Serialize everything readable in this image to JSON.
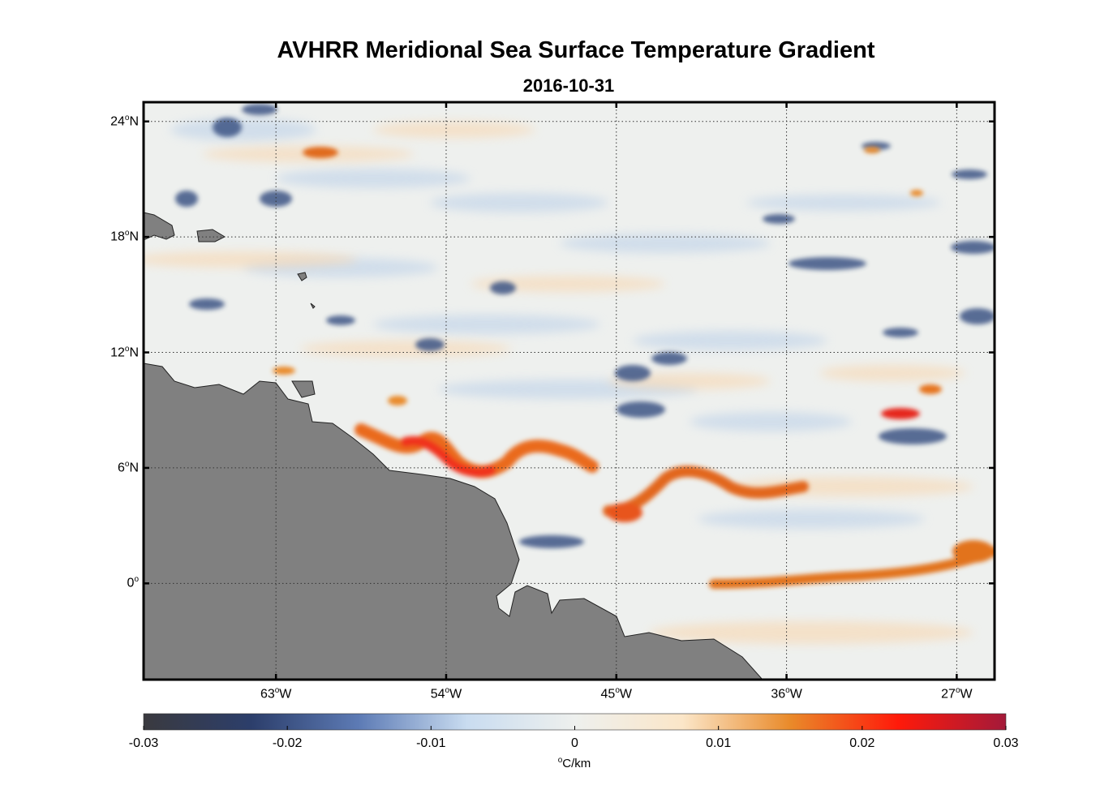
{
  "title": "AVHRR Meridional Sea Surface Temperature Gradient",
  "date": "2016-10-31",
  "map": {
    "lat_range": [
      -5,
      25
    ],
    "lon_range": [
      -70,
      -25
    ],
    "lat_ticks": [
      {
        "value": 24,
        "label_num": "24",
        "label_dir": "N"
      },
      {
        "value": 18,
        "label_num": "18",
        "label_dir": "N"
      },
      {
        "value": 12,
        "label_num": "12",
        "label_dir": "N"
      },
      {
        "value": 6,
        "label_num": "6",
        "label_dir": "N"
      },
      {
        "value": 0,
        "label_num": "0",
        "label_dir": ""
      }
    ],
    "lon_ticks": [
      {
        "value": -63,
        "label_num": "63",
        "label_dir": "W"
      },
      {
        "value": -54,
        "label_num": "54",
        "label_dir": "W"
      },
      {
        "value": -45,
        "label_num": "45",
        "label_dir": "W"
      },
      {
        "value": -36,
        "label_num": "36",
        "label_dir": "W"
      },
      {
        "value": -27,
        "label_num": "27",
        "label_dir": "W"
      }
    ],
    "degree_symbol": "o",
    "land_color": "#808080",
    "frame_color": "#000000"
  },
  "colorbar": {
    "min": -0.03,
    "max": 0.03,
    "ticks": [
      {
        "value": -0.03,
        "label": "-0.03"
      },
      {
        "value": -0.02,
        "label": "-0.02"
      },
      {
        "value": -0.01,
        "label": "-0.01"
      },
      {
        "value": 0,
        "label": "0"
      },
      {
        "value": 0.01,
        "label": "0.01"
      },
      {
        "value": 0.02,
        "label": "0.02"
      },
      {
        "value": 0.03,
        "label": "0.03"
      }
    ],
    "unit_symbol": "o",
    "unit_text": "C/km",
    "colors": [
      "#3a3a3f",
      "#2c3e6b",
      "#5d7bb5",
      "#c9dcf0",
      "#eef0ee",
      "#fbe6c8",
      "#e98a2a",
      "#ff1a0a",
      "#a31a3a"
    ]
  }
}
